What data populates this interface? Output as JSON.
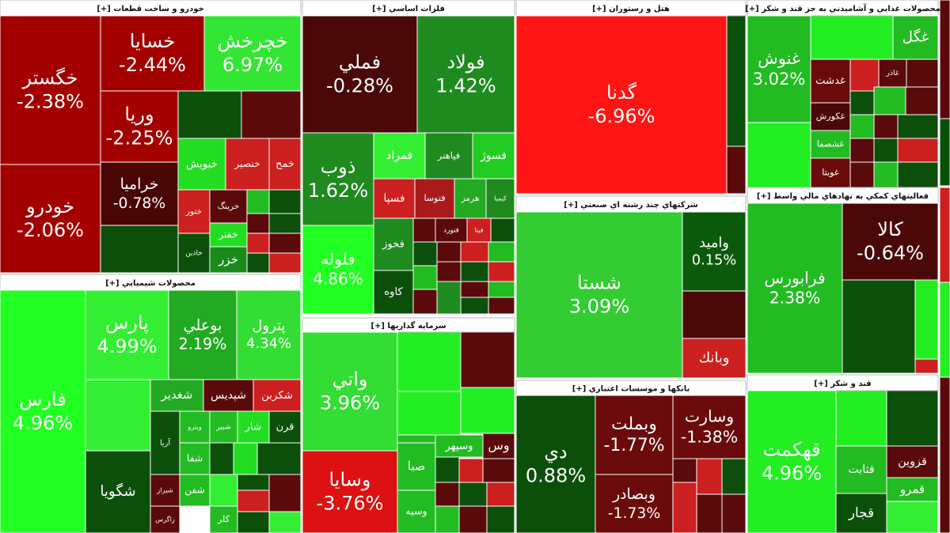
{
  "sectors": [
    {
      "title": "خودرو و ساخت قطعات [+]",
      "tiles": [
        {
          "name": "خگستر",
          "change": "-2.38%",
          "color": "#a30000"
        },
        {
          "name": "خودرو",
          "change": "-2.06%",
          "color": "#a30000"
        },
        {
          "name": "خسايا",
          "change": "-2.44%",
          "color": "#a30000"
        },
        {
          "name": "خچرخش",
          "change": "6.97%",
          "color": "#33e633"
        },
        {
          "name": "وريا",
          "change": "-2.25%",
          "color": "#a30000"
        },
        {
          "name": "خراميا",
          "change": "-0.78%",
          "color": "#4a0505"
        },
        {
          "name": "خبويش",
          "color": "#22dd22"
        },
        {
          "name": "خنصير",
          "color": "#cc1f1f"
        },
        {
          "name": "خمح",
          "color": "#cc1f1f"
        },
        {
          "name": "ختور",
          "color": "#cc1f1f"
        },
        {
          "name": "خرينگ",
          "color": "#5a0a0a"
        },
        {
          "name": "خفنر",
          "color": "#22dd22"
        },
        {
          "name": "خزر",
          "color": "#1a8a1a"
        },
        {
          "name": "خاذين",
          "color": "#0b4f0b"
        }
      ]
    },
    {
      "title": "محصولات شيميايي [+]",
      "tiles": [
        {
          "name": "فارس",
          "change": "4.96%",
          "color": "#22ff22"
        },
        {
          "name": "پارس",
          "change": "4.99%",
          "color": "#33ee33"
        },
        {
          "name": "بوعلي",
          "change": "2.19%",
          "color": "#22aa22"
        },
        {
          "name": "پترول",
          "change": "4.34%",
          "color": "#33dd33"
        },
        {
          "name": "شغدير",
          "color": "#22aa22"
        },
        {
          "name": "شپديس",
          "color": "#5a0a0a"
        },
        {
          "name": "شكربن",
          "color": "#cc1f1f"
        },
        {
          "name": "آريا",
          "color": "#0b4f0b"
        },
        {
          "name": "ويترو",
          "color": "#22bb22"
        },
        {
          "name": "قرن",
          "color": "#0b4f0b"
        },
        {
          "name": "شيراز",
          "color": "#5a0a0a"
        },
        {
          "name": "زاگرس",
          "color": "#5a0a0a"
        },
        {
          "name": "شگويا",
          "color": "#0b4f0b"
        },
        {
          "name": "شفا",
          "color": "#22bb22"
        },
        {
          "name": "شفن",
          "color": "#22bb22"
        },
        {
          "name": "شبير",
          "color": "#22bb22"
        },
        {
          "name": "شار",
          "color": "#22dd22"
        },
        {
          "name": "كلر",
          "color": "#22bb22"
        }
      ]
    },
    {
      "title": "فلزات اساسي [+]",
      "tiles": [
        {
          "name": "فملي",
          "change": "-0.28%",
          "color": "#4a0808"
        },
        {
          "name": "فولاد",
          "change": "1.42%",
          "color": "#1f8a1f"
        },
        {
          "name": "ذوب",
          "change": "1.62%",
          "color": "#1f8a1f"
        },
        {
          "name": "فلوله",
          "change": "4.86%",
          "color": "#22ff22"
        },
        {
          "name": "فمراد",
          "color": "#33ee33"
        },
        {
          "name": "فپاهنر",
          "color": "#1f8a1f"
        },
        {
          "name": "فسوژ",
          "color": "#22cc22"
        },
        {
          "name": "فسپا",
          "color": "#cc1f1f"
        },
        {
          "name": "فتوسا",
          "color": "#aa1a1a"
        },
        {
          "name": "هرمز",
          "color": "#22aa22"
        },
        {
          "name": "كيميا",
          "color": "#1f8a1f"
        },
        {
          "name": "فخوز",
          "color": "#1f8a1f"
        },
        {
          "name": "فنورد",
          "color": "#5a0a0a"
        },
        {
          "name": "فيتا",
          "color": "#cc1f1f"
        },
        {
          "name": "كاوه",
          "color": "#0b4f0b"
        }
      ]
    },
    {
      "title": "سرمايه گذاريها [+]",
      "tiles": [
        {
          "name": "واتي",
          "change": "3.96%",
          "color": "#33dd33"
        },
        {
          "name": "وسايا",
          "change": "-3.76%",
          "color": "#dd1111"
        },
        {
          "name": "صبا",
          "color": "#22bb22"
        },
        {
          "name": "وسپهر",
          "color": "#22bb22"
        },
        {
          "name": "وس",
          "color": "#5a0a0a"
        },
        {
          "name": "وسيه",
          "color": "#22bb22"
        }
      ]
    },
    {
      "title": "هتل و رستوران [+]",
      "tiles": [
        {
          "name": "گدنا",
          "change": "-6.96%",
          "color": "#ff1414"
        }
      ]
    },
    {
      "title": "شركتهاي چند رشته اي صنعتي [+]",
      "tiles": [
        {
          "name": "شستا",
          "change": "3.09%",
          "color": "#33cc33"
        },
        {
          "name": "واميد",
          "change": "0.15%",
          "color": "#0b5a0b"
        },
        {
          "name": "وبانك",
          "color": "#cc1f1f"
        }
      ]
    },
    {
      "title": "بانكها و موسسات اعتباري [+]",
      "tiles": [
        {
          "name": "دي",
          "change": "0.88%",
          "color": "#0b4f0b"
        },
        {
          "name": "وبملت",
          "change": "-1.77%",
          "color": "#6a0a0a"
        },
        {
          "name": "وبصادر",
          "change": "-1.73%",
          "color": "#6a0a0a"
        },
        {
          "name": "وسارت",
          "change": "-1.38%",
          "color": "#6a0a0a"
        }
      ]
    },
    {
      "title": "محصولات غذايي و آشاميدني به جز قند و شكر [+]",
      "tiles": [
        {
          "name": "غنوش",
          "change": "3.02%",
          "color": "#22bb22"
        },
        {
          "name": "غگل",
          "color": "#22bb22"
        },
        {
          "name": "غدشت",
          "color": "#6a0a0a"
        },
        {
          "name": "غاذر",
          "color": "#5a0a0a"
        },
        {
          "name": "غكورش",
          "color": "#4a0808"
        },
        {
          "name": "غشصفا",
          "color": "#22bb22"
        },
        {
          "name": "غويتا",
          "color": "#6a0a0a"
        }
      ]
    },
    {
      "title": "فعاليتهاي كمكي به نهادهاي مالي واسط [+]",
      "tiles": [
        {
          "name": "فرابورس",
          "change": "2.38%",
          "color": "#22bb22"
        },
        {
          "name": "كالا",
          "change": "-0.64%",
          "color": "#4a0808"
        }
      ]
    },
    {
      "title": "قند و شكر [+]",
      "tiles": [
        {
          "name": "قهكمت",
          "change": "4.96%",
          "color": "#22ee22"
        },
        {
          "name": "قثابت",
          "color": "#22bb22"
        },
        {
          "name": "قزوين",
          "color": "#5a0a0a"
        },
        {
          "name": "قمرو",
          "color": "#22bb22"
        },
        {
          "name": "قجار",
          "color": "#0b4f0b"
        }
      ]
    }
  ]
}
